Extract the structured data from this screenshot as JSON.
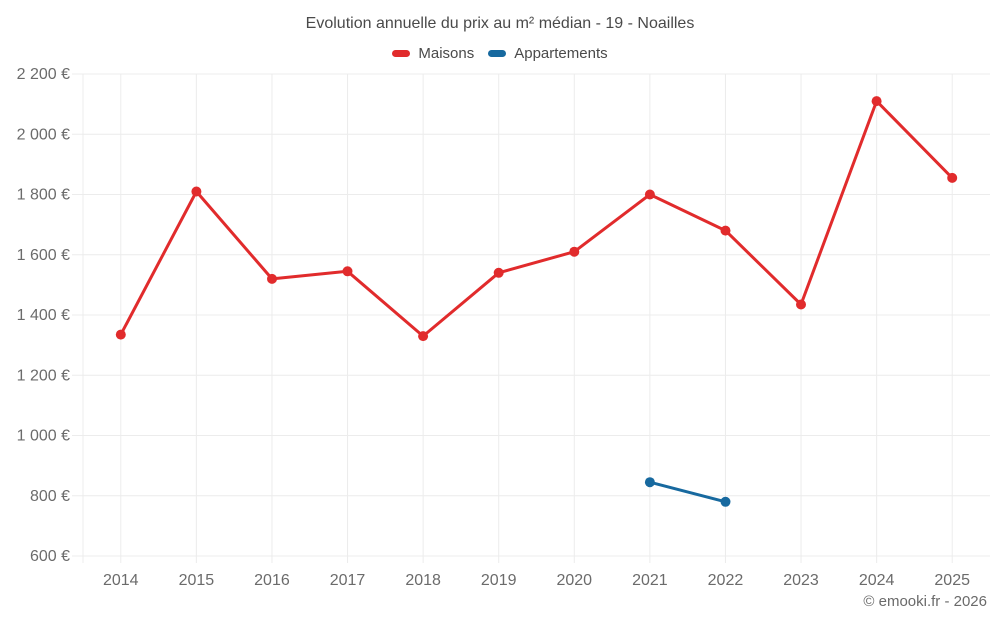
{
  "title": "Evolution annuelle du prix au m² médian - 19 - Noailles",
  "footer": "© emooki.fr - 2026",
  "colors": {
    "background": "#ffffff",
    "grid": "#ececec",
    "tick_text": "#6b6b6b",
    "title_text": "#4a4a4a",
    "legend_text": "#4a4a4a",
    "footer_text": "#6a6a6a",
    "maisons": "#e12b2c",
    "appartements": "#17699f"
  },
  "chart_data": {
    "type": "line",
    "title": "Evolution annuelle du prix au m² médian - 19 - Noailles",
    "categories": [
      "2014",
      "2015",
      "2016",
      "2017",
      "2018",
      "2019",
      "2020",
      "2021",
      "2022",
      "2023",
      "2024",
      "2025"
    ],
    "series": [
      {
        "name": "Maisons",
        "color": "#e12b2c",
        "values": [
          1335,
          1810,
          1520,
          1545,
          1330,
          1540,
          1610,
          1800,
          1680,
          1435,
          2110,
          1855
        ]
      },
      {
        "name": "Appartements",
        "color": "#17699f",
        "values": [
          null,
          null,
          null,
          null,
          null,
          null,
          null,
          845,
          780,
          null,
          null,
          null
        ]
      }
    ],
    "ylim": [
      600,
      2200
    ],
    "y_tick_step": 200,
    "y_tick_labels": [
      "600 €",
      "800 €",
      "1 000 €",
      "1 200 €",
      "1 400 €",
      "1 600 €",
      "1 800 €",
      "2 000 €",
      "2 200 €"
    ],
    "xlabel": "",
    "ylabel": "",
    "grid": true,
    "legend_position": "top",
    "legend": [
      "Maisons",
      "Appartements"
    ]
  }
}
